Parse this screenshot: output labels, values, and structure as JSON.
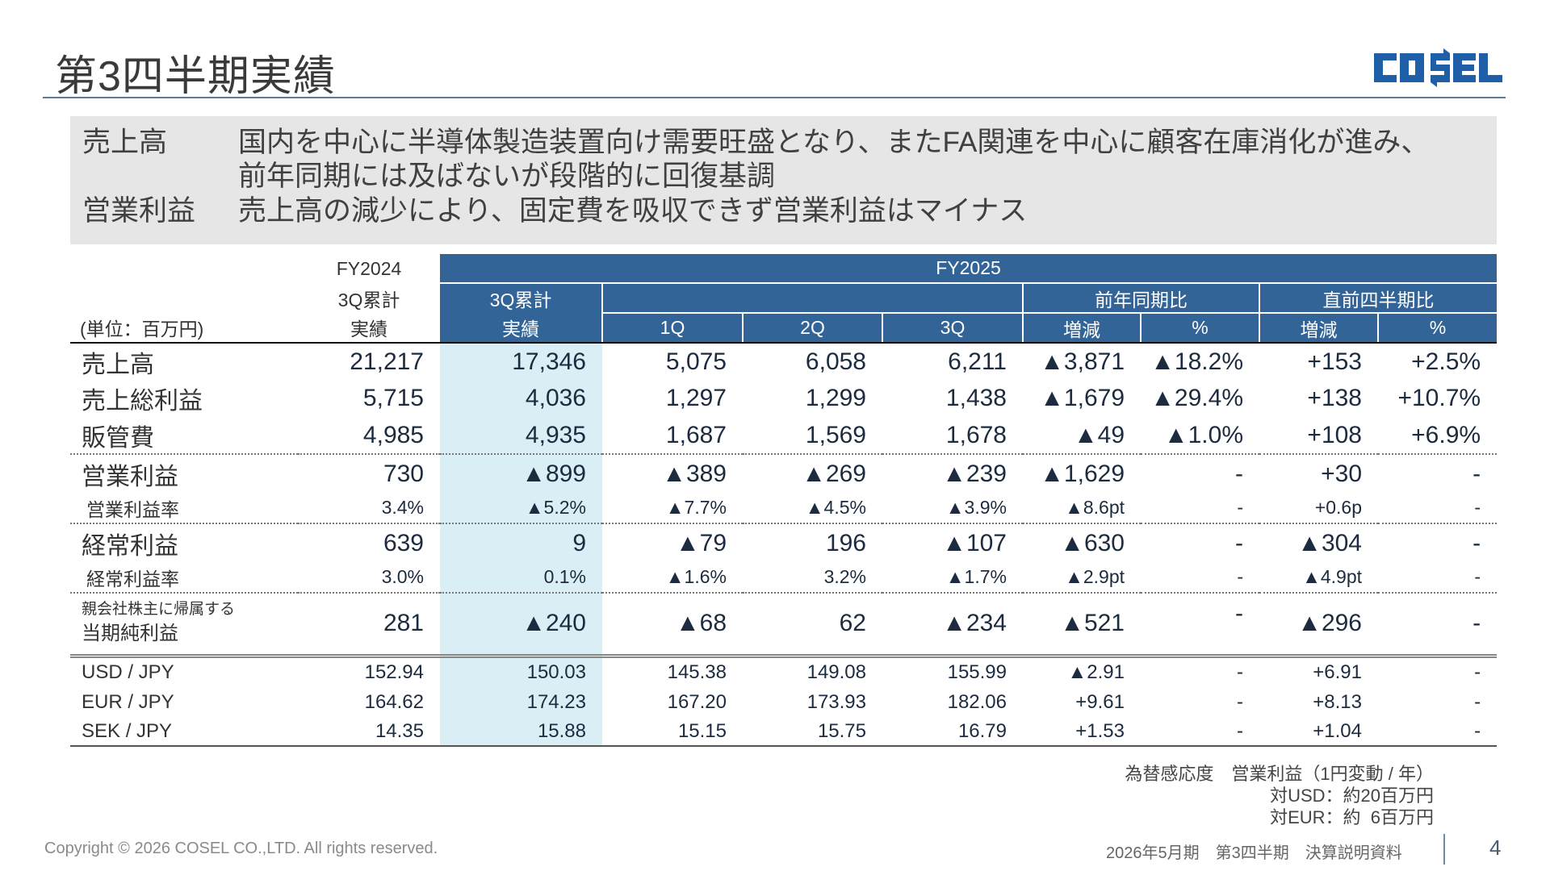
{
  "page": {
    "title": "第3四半期実績",
    "logo_text": "COSEL",
    "brand_color": "#1f5fa8"
  },
  "summary": [
    {
      "label": "売上高",
      "lines": [
        "国内を中心に半導体製造装置向け需要旺盛となり、またFA関連を中心に顧客在庫消化が進み、",
        "前年同期には及ばないが段階的に回復基調"
      ]
    },
    {
      "label": "営業利益",
      "lines": [
        "売上高の減少により、固定費を吸収できず営業利益はマイナス"
      ]
    }
  ],
  "table": {
    "unit": "(単位：百万円)",
    "fy2024": [
      "FY2024",
      "3Q累計",
      "実績"
    ],
    "fy2025": "FY2025",
    "cum_label": "3Q累計",
    "yoy_label": "前年同期比",
    "qoq_label": "直前四半期比",
    "sub_headers": [
      "実績",
      "1Q",
      "2Q",
      "3Q",
      "増減",
      "%",
      "増減",
      "%"
    ],
    "rows": [
      {
        "label": "売上高",
        "kind": "big",
        "values": [
          "21,217",
          "17,346",
          "5,075",
          "6,058",
          "6,211",
          "▲3,871",
          "▲18.2%",
          "+153",
          "+2.5%"
        ]
      },
      {
        "label": "売上総利益",
        "kind": "big",
        "values": [
          "5,715",
          "4,036",
          "1,297",
          "1,299",
          "1,438",
          "▲1,679",
          "▲29.4%",
          "+138",
          "+10.7%"
        ]
      },
      {
        "label": "販管費",
        "kind": "big",
        "sep": "dotted",
        "values": [
          "4,985",
          "4,935",
          "1,687",
          "1,569",
          "1,678",
          "▲49",
          "▲1.0%",
          "+108",
          "+6.9%"
        ]
      },
      {
        "label": "営業利益",
        "kind": "big",
        "values": [
          "730",
          "▲899",
          "▲389",
          "▲269",
          "▲239",
          "▲1,629",
          "-",
          "+30",
          "-"
        ]
      },
      {
        "label": "営業利益率",
        "kind": "rate",
        "sep": "dotted",
        "values": [
          "3.4%",
          "▲5.2%",
          "▲7.7%",
          "▲4.5%",
          "▲3.9%",
          "▲8.6pt",
          "-",
          "+0.6p",
          "-"
        ]
      },
      {
        "label": "経常利益",
        "kind": "big",
        "values": [
          "639",
          "9",
          "▲79",
          "196",
          "▲107",
          "▲630",
          "-",
          "▲304",
          "-"
        ]
      },
      {
        "label": "経常利益率",
        "kind": "rate",
        "sep": "dotted",
        "values": [
          "3.0%",
          "0.1%",
          "▲1.6%",
          "3.2%",
          "▲1.7%",
          "▲2.9pt",
          "-",
          "▲4.9pt",
          "-"
        ]
      },
      {
        "label": "親会社株主に帰属する",
        "label2": "当期純利益",
        "kind": "net",
        "sep": "double",
        "values": [
          "281",
          "▲240",
          "▲68",
          "62",
          "▲234",
          "▲521",
          "-",
          "▲296",
          "-"
        ]
      },
      {
        "label": "USD / JPY",
        "kind": "fx",
        "values": [
          "152.94",
          "150.03",
          "145.38",
          "149.08",
          "155.99",
          "▲2.91",
          "-",
          "+6.91",
          "-"
        ]
      },
      {
        "label": "EUR / JPY",
        "kind": "fx",
        "values": [
          "164.62",
          "174.23",
          "167.20",
          "173.93",
          "182.06",
          "+9.61",
          "-",
          "+8.13",
          "-"
        ]
      },
      {
        "label": "SEK / JPY",
        "kind": "fx",
        "sep": "solid",
        "values": [
          "14.35",
          "15.88",
          "15.15",
          "15.75",
          "16.79",
          "+1.53",
          "-",
          "+1.04",
          "-"
        ]
      }
    ]
  },
  "note": [
    "為替感応度　営業利益（1円変動 / 年）",
    "対USD：約20百万円",
    "対EUR：約  6百万円"
  ],
  "footer": {
    "copyright": "Copyright © 2026 COSEL CO.,LTD. All rights reserved.",
    "doc": "2026年5月期　第3四半期　決算説明資料",
    "page": "4"
  }
}
